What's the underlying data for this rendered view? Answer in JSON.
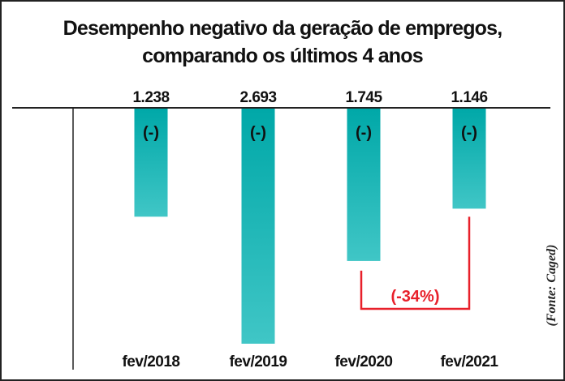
{
  "title_line1": "Desempenho negativo da geração de empregos,",
  "title_line2": "comparando os últimos 4 anos",
  "source": "(Fonte: Caged)",
  "chart_data": {
    "type": "bar",
    "orientation": "downward",
    "categories": [
      "fev/2018",
      "fev/2019",
      "fev/2020",
      "fev/2021"
    ],
    "values": [
      -1238,
      -2693,
      -1745,
      -1146
    ],
    "data_labels": [
      "1.238",
      "2.693",
      "1.745",
      "1.146"
    ],
    "bar_sign_label": "(-)",
    "annotation": {
      "text": "(-34%)",
      "from": "fev/2020",
      "to": "fev/2021",
      "color": "#e8202a"
    },
    "bar_color_top": "#00a8a8",
    "bar_color_bottom": "#40c6c6",
    "grid": false
  }
}
